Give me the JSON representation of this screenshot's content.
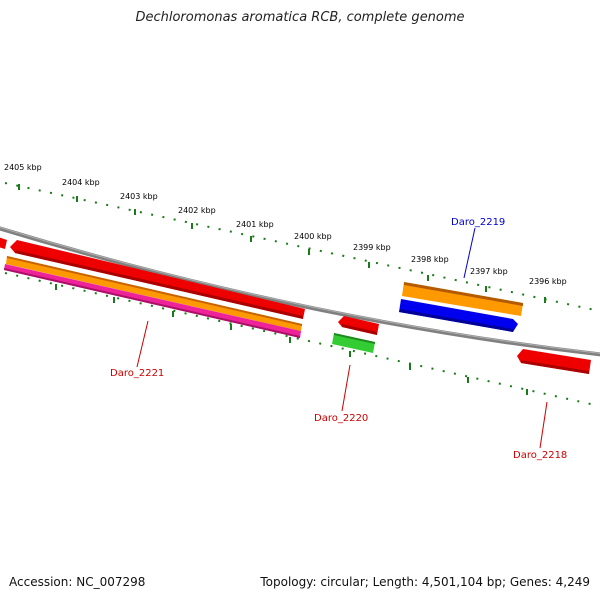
{
  "title": "Dechloromonas aromatica RCB, complete genome",
  "footer": {
    "accession": "Accession: NC_007298",
    "summary": "Topology: circular; Length: 4,501,104 bp; Genes: 4,249"
  },
  "ruler": {
    "tick_labels": [
      "2405 kbp",
      "2404 kbp",
      "2403 kbp",
      "2402 kbp",
      "2401 kbp",
      "2400 kbp",
      "2399 kbp",
      "2398 kbp",
      "2397 kbp",
      "2396 kbp"
    ],
    "color": "#1a7a1a"
  },
  "backbone_color": "#808080",
  "genes": [
    {
      "label": "Daro_2221",
      "label_color": "#cc0000"
    },
    {
      "label": "Daro_2220",
      "label_color": "#cc0000"
    },
    {
      "label": "Daro_2219",
      "label_color": "#0000cc"
    },
    {
      "label": "Daro_2218",
      "label_color": "#cc0000"
    }
  ],
  "feature_colors": {
    "cds": "#ee0000",
    "gene": "#ff9900",
    "rrna": "#0000ee",
    "misc": "#ee2299",
    "trna": "#33cc33"
  }
}
